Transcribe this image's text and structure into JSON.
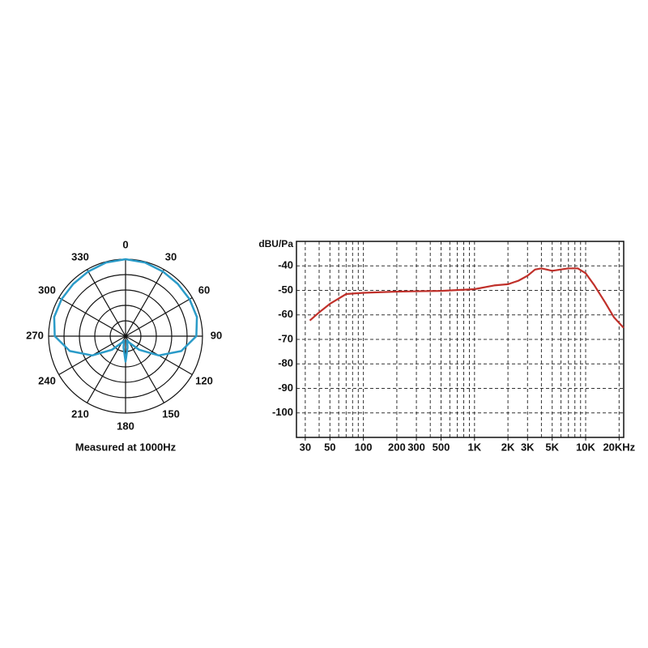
{
  "chart_data": [
    {
      "type": "polar",
      "caption": "Measured at 1000Hz",
      "color": "#2a9bc8",
      "rlim": [
        0,
        1
      ],
      "thetaticks": [
        0,
        30,
        60,
        90,
        120,
        150,
        180,
        210,
        240,
        270,
        300,
        330
      ],
      "theta": [
        0,
        15,
        30,
        45,
        60,
        75,
        90,
        105,
        120,
        135,
        150,
        160,
        170,
        180,
        190,
        200,
        210,
        225,
        240,
        255,
        270,
        285,
        300,
        315,
        330,
        345
      ],
      "r": [
        1.0,
        0.99,
        0.97,
        0.96,
        0.96,
        0.96,
        0.92,
        0.75,
        0.5,
        0.25,
        0.1,
        0.06,
        0.15,
        0.33,
        0.15,
        0.06,
        0.1,
        0.25,
        0.5,
        0.75,
        0.92,
        0.96,
        0.96,
        0.96,
        0.97,
        0.99
      ]
    },
    {
      "type": "line",
      "ylabel": "dBU/Pa",
      "log_x": true,
      "grid": true,
      "color": "#c0302a",
      "xlim": [
        25,
        22000
      ],
      "ylim": [
        -110,
        -30
      ],
      "xticks": [
        30,
        50,
        100,
        200,
        300,
        500,
        {
          "value": 1000,
          "label": "1K"
        },
        {
          "value": 2000,
          "label": "2K"
        },
        {
          "value": 3000,
          "label": "3K"
        },
        {
          "value": 5000,
          "label": "5K"
        },
        {
          "value": 10000,
          "label": "10K"
        },
        {
          "value": 20000,
          "label": "20KHz"
        }
      ],
      "xminor": [
        30,
        40,
        50,
        60,
        70,
        80,
        90,
        100,
        200,
        300,
        400,
        500,
        600,
        700,
        800,
        900,
        1000,
        2000,
        3000,
        4000,
        5000,
        6000,
        7000,
        8000,
        9000,
        10000,
        20000
      ],
      "yticks": [
        -40,
        -50,
        -60,
        -70,
        -80,
        -90,
        -100
      ],
      "x": [
        33,
        40,
        50,
        70,
        100,
        200,
        500,
        1000,
        1500,
        2000,
        2500,
        3000,
        3500,
        4000,
        5000,
        7000,
        8500,
        10000,
        12000,
        15000,
        18000,
        22000
      ],
      "values": [
        -62.3,
        -59,
        -55.5,
        -51.5,
        -51,
        -50.5,
        -50.2,
        -49.5,
        -48,
        -47.5,
        -46,
        -44,
        -41.5,
        -41,
        -42,
        -41,
        -41,
        -43,
        -48,
        -55,
        -61,
        -65.3
      ]
    }
  ]
}
